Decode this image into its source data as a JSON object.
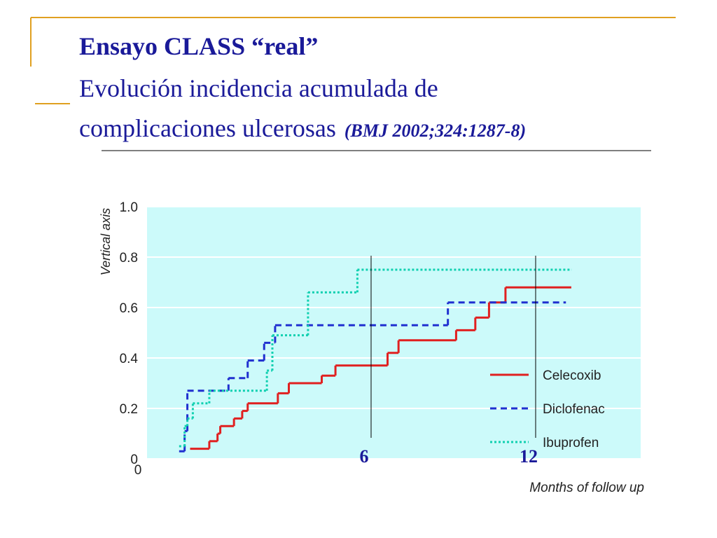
{
  "header": {
    "title": "Ensayo CLASS “real”",
    "subtitle_line1": "Evolución incidencia acumulada de",
    "subtitle_line2": "complicaciones ulcerosas",
    "reference": "(BMJ 2002;324:1287-8)"
  },
  "chart_data": {
    "type": "step-line",
    "ylabel": "Vertical axis",
    "xlabel": "Months of follow up",
    "x_origin_label": "0",
    "xlim": [
      -2.17,
      15.83
    ],
    "ylim": [
      0,
      1
    ],
    "yticks": [
      0,
      0.2,
      0.4,
      0.6,
      0.8,
      {
        "value": 1,
        "label": "1.0"
      }
    ],
    "grid": true,
    "background": "#ccfafa",
    "legend": "bottom-right",
    "series": [
      {
        "name": "Celecoxib",
        "color": "#e02020",
        "dash": "solid",
        "x": [
          -0.6,
          0.1,
          0.4,
          0.5,
          1.0,
          1.3,
          1.5,
          2.6,
          3.0,
          4.2,
          4.7,
          6.6,
          7.0,
          9.1,
          9.8,
          10.3,
          10.9,
          13.3
        ],
        "values": [
          0.04,
          0.07,
          0.1,
          0.13,
          0.16,
          0.19,
          0.22,
          0.26,
          0.3,
          0.33,
          0.37,
          0.42,
          0.47,
          0.51,
          0.56,
          0.62,
          0.68,
          0.68
        ]
      },
      {
        "name": "Diclofenac",
        "color": "#2030d0",
        "dash": "dashed",
        "x": [
          -1.0,
          -0.8,
          -0.7,
          0.8,
          1.5,
          2.1,
          2.5,
          8.8,
          13.1
        ],
        "values": [
          0.03,
          0.11,
          0.27,
          0.32,
          0.39,
          0.46,
          0.53,
          0.62,
          0.62
        ]
      },
      {
        "name": "Ibuprofen",
        "color": "#10d0b0",
        "dash": "dotted",
        "x": [
          -1.0,
          -0.8,
          -0.7,
          -0.5,
          0.1,
          2.2,
          2.4,
          3.7,
          5.5,
          13.3
        ],
        "values": [
          0.05,
          0.13,
          0.16,
          0.22,
          0.27,
          0.35,
          0.49,
          0.66,
          0.75,
          0.75
        ]
      }
    ],
    "annotations": [
      {
        "label": "6",
        "x": 6
      },
      {
        "label": "12",
        "x": 12
      }
    ]
  }
}
